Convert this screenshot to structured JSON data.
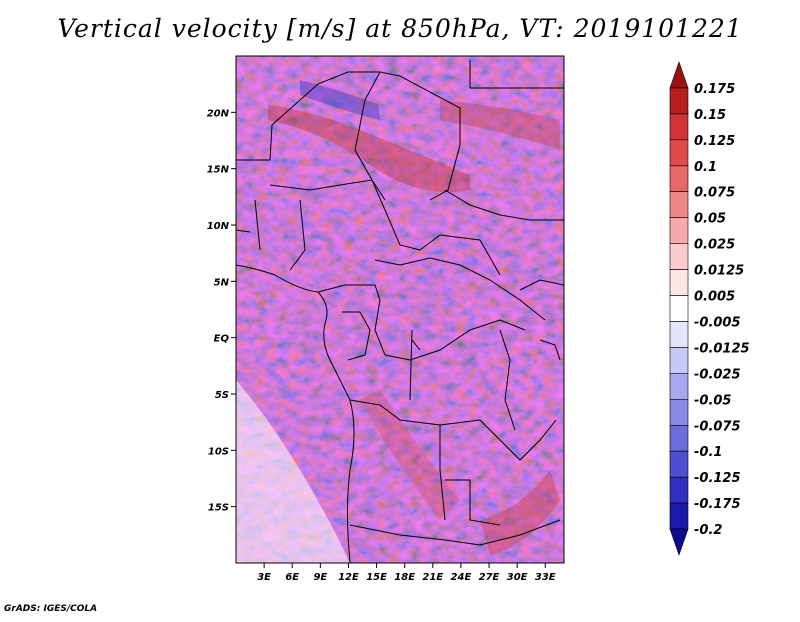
{
  "title": "Vertical velocity [m/s] at 850hPa, VT: 2019101221",
  "credit": "GrADS: IGES/COLA",
  "map": {
    "lon_range": [
      0,
      35
    ],
    "lat_range": [
      -20,
      25
    ],
    "lon_ticks": [
      "3E",
      "6E",
      "9E",
      "12E",
      "15E",
      "18E",
      "21E",
      "24E",
      "27E",
      "30E",
      "33E"
    ],
    "lat_ticks": [
      "20N",
      "15N",
      "10N",
      "5N",
      "EQ",
      "5S",
      "10S",
      "15S"
    ],
    "lon_tick_values": [
      3,
      6,
      9,
      12,
      15,
      18,
      21,
      24,
      27,
      30,
      33
    ],
    "lat_tick_values": [
      20,
      15,
      10,
      5,
      0,
      -5,
      -10,
      -15
    ]
  },
  "colorbar": {
    "labels": [
      "0.175",
      "0.15",
      "0.125",
      "0.1",
      "0.075",
      "0.05",
      "0.025",
      "0.0125",
      "0.005",
      "-0.005",
      "-0.0125",
      "-0.025",
      "-0.05",
      "-0.075",
      "-0.1",
      "-0.125",
      "-0.175",
      "-0.2"
    ],
    "colors": [
      "#a01010",
      "#b81e1e",
      "#d03434",
      "#e04a4a",
      "#e86868",
      "#f08888",
      "#f6aaaa",
      "#fbcaca",
      "#fde6e6",
      "#ffffff",
      "#e4e4fb",
      "#c8c8f4",
      "#a8a8ee",
      "#8a8ae6",
      "#6c6cdc",
      "#4e4ed0",
      "#3030c0",
      "#1a1aaa",
      "#0c0c90"
    ]
  }
}
